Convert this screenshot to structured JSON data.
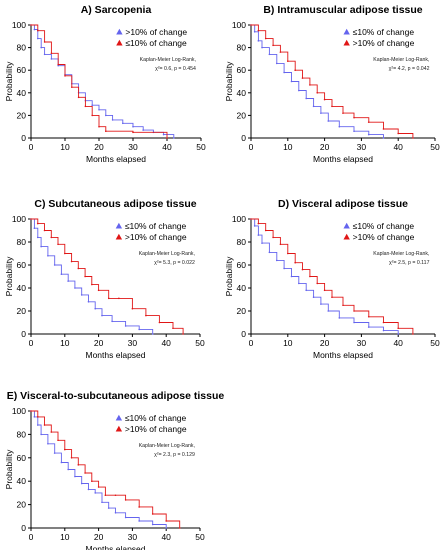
{
  "colors": {
    "blue": "#6464ee",
    "red": "#e01616",
    "axis": "#000000"
  },
  "chart_data": [
    {
      "type": "line",
      "panel": "A",
      "title": "A) Sarcopenia",
      "xlabel": "Months elapsed",
      "ylabel": "Probability",
      "xlim": [
        0,
        50
      ],
      "ylim": [
        0,
        100
      ],
      "xticks": [
        0,
        10,
        20,
        30,
        40,
        50
      ],
      "yticks": [
        0,
        20,
        40,
        60,
        80,
        100
      ],
      "legend_position": "top-right",
      "annotation": [
        "Kaplan-Meier Log-Rank,",
        "χ²= 0.6, p = 0.454"
      ],
      "series": [
        {
          "name": ">10% of change",
          "color": "blue",
          "x": [
            0,
            1,
            2,
            3,
            4,
            6,
            8,
            10,
            12,
            14,
            16,
            18,
            20,
            22,
            24,
            27,
            30,
            33,
            36,
            39,
            42
          ],
          "y": [
            100,
            96,
            88,
            80,
            74,
            70,
            64,
            56,
            48,
            40,
            33,
            29,
            25,
            20,
            16,
            13,
            10,
            7,
            5,
            3,
            0
          ]
        },
        {
          "name": "≤10% of change",
          "color": "red",
          "x": [
            0,
            2,
            4,
            6,
            8,
            10,
            12,
            14,
            16,
            18,
            20,
            22,
            30,
            40
          ],
          "y": [
            100,
            95,
            85,
            75,
            65,
            55,
            45,
            36,
            28,
            20,
            10,
            6,
            5,
            0
          ]
        }
      ]
    },
    {
      "type": "line",
      "panel": "B",
      "title": "B) Intramuscular adipose tissue",
      "xlabel": "Months elapsed",
      "ylabel": "Probability",
      "xlim": [
        0,
        50
      ],
      "ylim": [
        0,
        100
      ],
      "xticks": [
        0,
        10,
        20,
        30,
        40,
        50
      ],
      "yticks": [
        0,
        20,
        40,
        60,
        80,
        100
      ],
      "legend_position": "top-right",
      "annotation": [
        "Kaplan-Meier Log-Rank,",
        "χ²= 4.2, p = 0.042"
      ],
      "series": [
        {
          "name": "≤10% of change",
          "color": "blue",
          "x": [
            0,
            1,
            2,
            3,
            5,
            7,
            9,
            11,
            13,
            15,
            17,
            19,
            21,
            24,
            28,
            32,
            36
          ],
          "y": [
            100,
            94,
            86,
            80,
            74,
            66,
            58,
            50,
            42,
            35,
            28,
            22,
            15,
            10,
            6,
            3,
            0
          ]
        },
        {
          "name": ">10% of change",
          "color": "red",
          "x": [
            0,
            2,
            4,
            6,
            8,
            10,
            12,
            14,
            16,
            18,
            20,
            22,
            25,
            28,
            32,
            36,
            40,
            44
          ],
          "y": [
            100,
            95,
            88,
            82,
            76,
            68,
            60,
            53,
            47,
            40,
            34,
            28,
            22,
            18,
            14,
            8,
            4,
            0
          ]
        }
      ]
    },
    {
      "type": "line",
      "panel": "C",
      "title": "C) Subcutaneous adipose tissue",
      "xlabel": "Months elapsed",
      "ylabel": "Probability",
      "xlim": [
        0,
        50
      ],
      "ylim": [
        0,
        100
      ],
      "xticks": [
        0,
        10,
        20,
        30,
        40,
        50
      ],
      "yticks": [
        0,
        20,
        40,
        60,
        80,
        100
      ],
      "legend_position": "top-right",
      "annotation": [
        "Kaplan-Meier Log-Rank,",
        "χ²= 5.3, p = 0.022"
      ],
      "series": [
        {
          "name": "≤10% of change",
          "color": "blue",
          "x": [
            0,
            1,
            2,
            3,
            5,
            7,
            9,
            11,
            13,
            15,
            17,
            19,
            21,
            24,
            28,
            32,
            36
          ],
          "y": [
            100,
            92,
            84,
            76,
            68,
            60,
            52,
            46,
            40,
            34,
            28,
            22,
            16,
            11,
            7,
            4,
            0
          ]
        },
        {
          "name": ">10% of change",
          "color": "red",
          "x": [
            0,
            2,
            4,
            6,
            8,
            10,
            12,
            14,
            16,
            18,
            20,
            23,
            26,
            30,
            34,
            38,
            42,
            45
          ],
          "y": [
            100,
            96,
            90,
            84,
            78,
            70,
            63,
            57,
            50,
            43,
            38,
            31,
            31,
            22,
            16,
            10,
            5,
            0
          ]
        }
      ]
    },
    {
      "type": "line",
      "panel": "D",
      "title": "D) Visceral adipose tissue",
      "xlabel": "Months elapsed",
      "ylabel": "Probability",
      "xlim": [
        0,
        50
      ],
      "ylim": [
        0,
        100
      ],
      "xticks": [
        0,
        10,
        20,
        30,
        40,
        50
      ],
      "yticks": [
        0,
        20,
        40,
        60,
        80,
        100
      ],
      "legend_position": "top-right",
      "annotation": [
        "Kaplan-Meier Log-Rank,",
        "χ²= 2.5, p = 0.117"
      ],
      "series": [
        {
          "name": "≤10% of change",
          "color": "blue",
          "x": [
            0,
            1,
            2,
            3,
            5,
            7,
            9,
            11,
            13,
            15,
            17,
            19,
            21,
            24,
            28,
            32,
            36,
            40
          ],
          "y": [
            100,
            94,
            86,
            79,
            71,
            64,
            57,
            50,
            44,
            38,
            32,
            26,
            20,
            14,
            10,
            6,
            3,
            0
          ]
        },
        {
          "name": ">10% of change",
          "color": "red",
          "x": [
            0,
            2,
            4,
            6,
            8,
            10,
            12,
            14,
            16,
            18,
            20,
            22,
            25,
            28,
            32,
            36,
            40,
            44
          ],
          "y": [
            100,
            96,
            90,
            84,
            78,
            70,
            62,
            56,
            50,
            44,
            38,
            32,
            25,
            20,
            15,
            10,
            5,
            0
          ]
        }
      ]
    },
    {
      "type": "line",
      "panel": "E",
      "title": "E) Visceral-to-subcutaneous adipose tissue",
      "xlabel": "Months elapsed",
      "ylabel": "Probability",
      "xlim": [
        0,
        50
      ],
      "ylim": [
        0,
        100
      ],
      "xticks": [
        0,
        10,
        20,
        30,
        40,
        50
      ],
      "yticks": [
        0,
        20,
        40,
        60,
        80,
        100
      ],
      "legend_position": "top-right",
      "annotation": [
        "Kaplan-Meier Log-Rank,",
        "χ²= 2.3, p = 0.129"
      ],
      "series": [
        {
          "name": "≤10% of change",
          "color": "blue",
          "x": [
            0,
            1,
            2,
            3,
            5,
            7,
            9,
            11,
            13,
            15,
            17,
            19,
            21,
            23,
            25,
            28,
            32,
            36,
            40
          ],
          "y": [
            100,
            95,
            88,
            80,
            72,
            64,
            56,
            50,
            44,
            38,
            33,
            30,
            22,
            17,
            13,
            9,
            6,
            3,
            0
          ]
        },
        {
          "name": ">10% of change",
          "color": "red",
          "x": [
            0,
            2,
            4,
            6,
            8,
            10,
            12,
            14,
            16,
            18,
            20,
            22,
            25,
            28,
            32,
            36,
            40,
            44
          ],
          "y": [
            100,
            95,
            88,
            82,
            75,
            67,
            60,
            54,
            47,
            40,
            35,
            28,
            28,
            24,
            18,
            12,
            6,
            0
          ]
        }
      ]
    }
  ]
}
